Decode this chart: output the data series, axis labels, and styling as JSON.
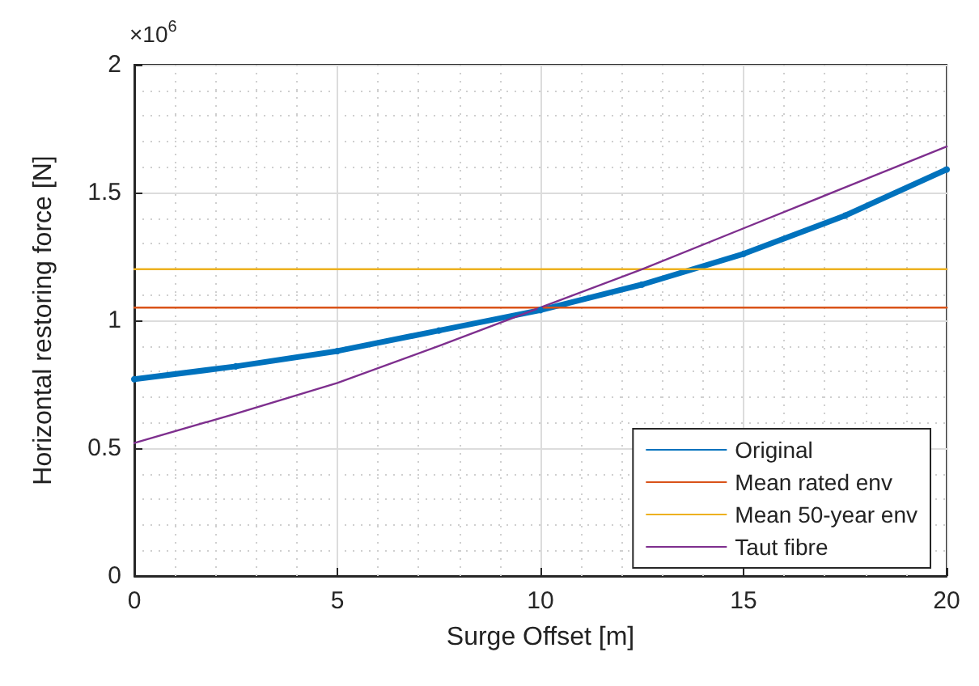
{
  "chart_data": {
    "type": "line",
    "xlabel": "Surge Offset [m]",
    "ylabel": "Horizontal restoring force [N]",
    "annotations": [
      "×10$^{6}$"
    ],
    "xlim": [
      0,
      20
    ],
    "xticks": [
      0,
      5,
      10,
      15,
      20
    ],
    "ylim": [
      0,
      2
    ],
    "yticks": [
      0,
      0.5,
      1,
      1.5,
      2
    ],
    "grid": true,
    "legend": "bottom right",
    "line_style": "solid",
    "series": [
      {
        "name": "Original",
        "color": "#0072bd",
        "marker": "circle",
        "x": [
          0,
          2.5,
          5,
          7.5,
          10,
          12.5,
          15,
          17.5,
          20
        ],
        "values": [
          0.77,
          0.82,
          0.88,
          0.96,
          1.04,
          1.14,
          1.26,
          1.41,
          1.59
        ]
      },
      {
        "name": "Mean rated env",
        "color": "#d95319",
        "x": [
          0,
          20
        ],
        "values": [
          1.05,
          1.05
        ]
      },
      {
        "name": "Mean 50-year env",
        "color": "#edb120",
        "x": [
          0,
          20
        ],
        "values": [
          1.2,
          1.2
        ]
      },
      {
        "name": "Taut fibre",
        "color": "#7e2f8e",
        "x": [
          0,
          2.5,
          5,
          7.5,
          10,
          12.5,
          15,
          17.5,
          20
        ],
        "values": [
          0.52,
          0.635,
          0.755,
          0.9,
          1.05,
          1.2,
          1.36,
          1.52,
          1.68
        ]
      }
    ]
  }
}
